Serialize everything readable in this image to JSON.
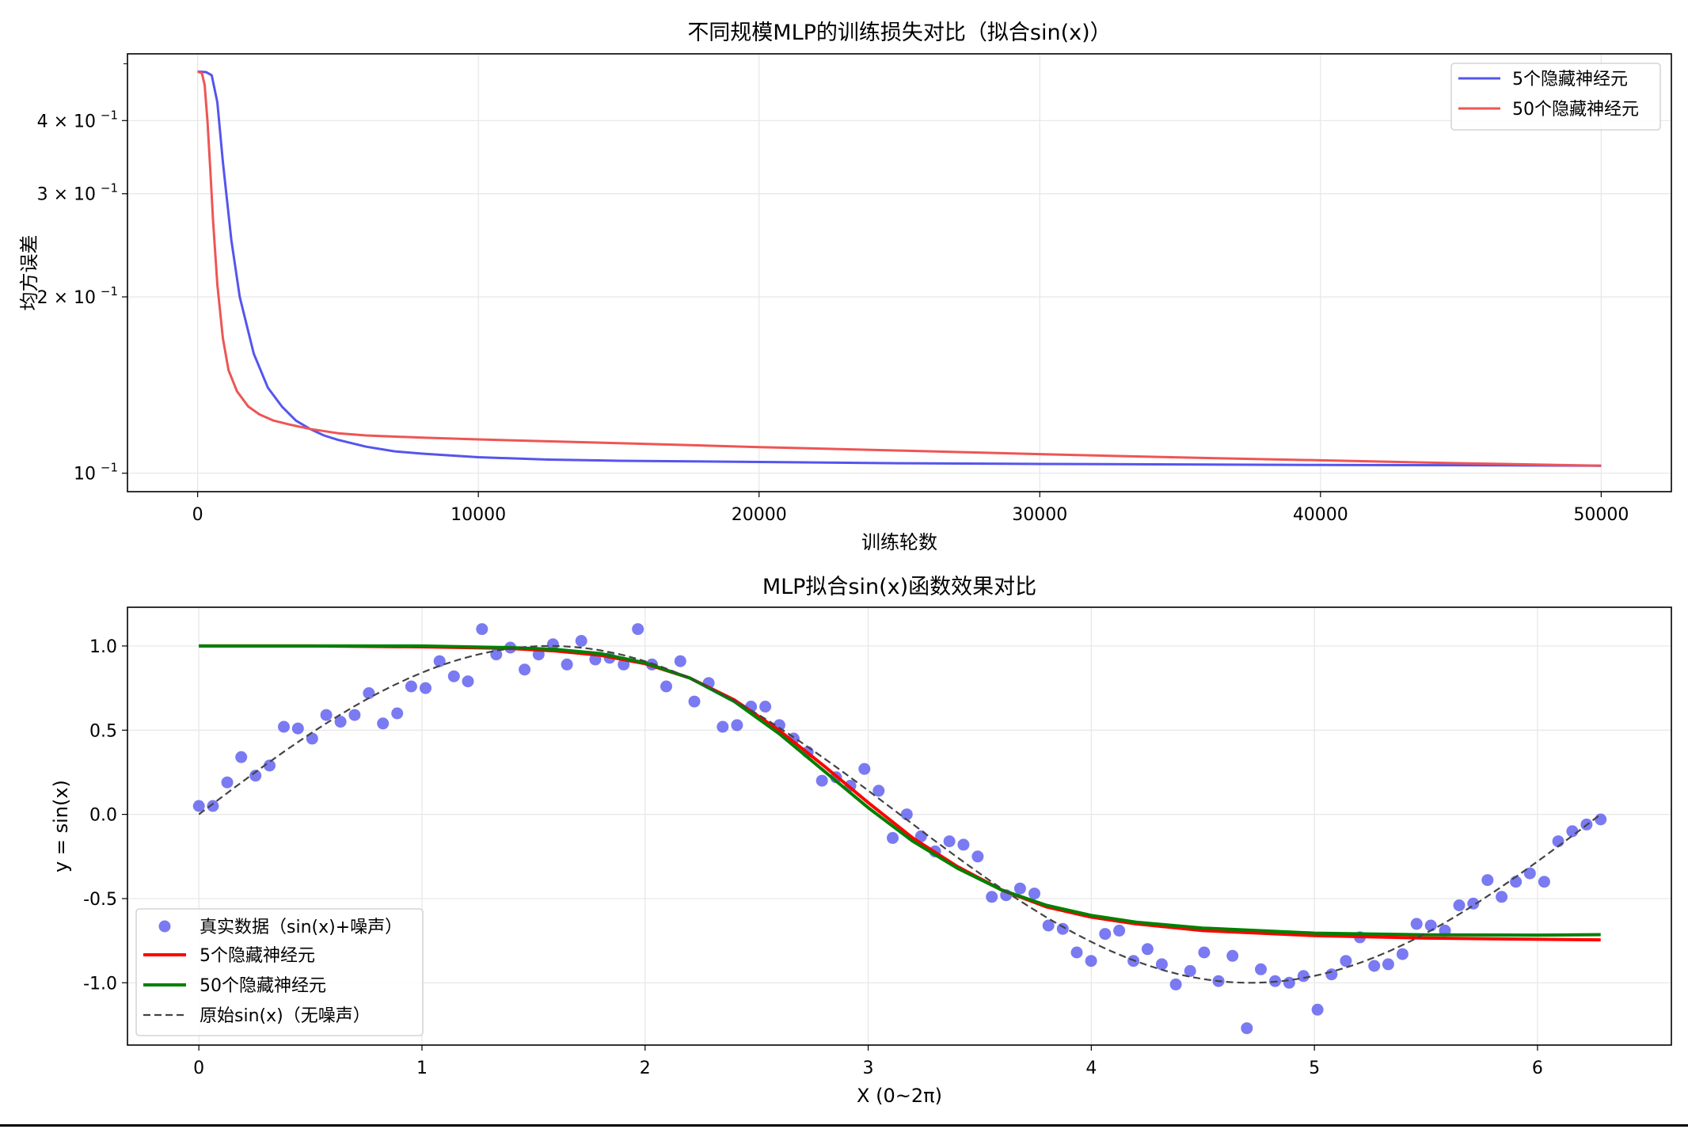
{
  "chart_data": [
    {
      "type": "line",
      "title": "不同规模MLP的训练损失对比（拟合sin(x)）",
      "xlabel": "训练轮数",
      "ylabel": "均方误差",
      "xlim": [
        -2500,
        52500
      ],
      "ylim": [
        0.093,
        0.52
      ],
      "yscale": "log",
      "xticks": [
        0,
        10000,
        20000,
        30000,
        40000,
        50000
      ],
      "xtick_labels": [
        "0",
        "10000",
        "20000",
        "30000",
        "40000",
        "50000"
      ],
      "yticks": [
        0.1,
        0.2,
        0.3,
        0.4
      ],
      "ytick_labels": [
        {
          "m": "10",
          "e": "−1"
        },
        {
          "m": "2 × 10",
          "e": "−1"
        },
        {
          "m": "3 × 10",
          "e": "−1"
        },
        {
          "m": "4 × 10",
          "e": "−1"
        }
      ],
      "grid": true,
      "legend_position": "upper right",
      "series": [
        {
          "name": "5个隐藏神经元",
          "color": "#5555ee",
          "x": [
            0,
            300,
            500,
            700,
            900,
            1200,
            1500,
            2000,
            2500,
            3000,
            3500,
            4000,
            4500,
            5000,
            6000,
            7000,
            8000,
            10000,
            12500,
            15000,
            20000,
            25000,
            30000,
            35000,
            40000,
            45000,
            50000
          ],
          "y": [
            0.485,
            0.484,
            0.478,
            0.43,
            0.34,
            0.25,
            0.2,
            0.16,
            0.14,
            0.13,
            0.123,
            0.119,
            0.116,
            0.114,
            0.111,
            0.109,
            0.108,
            0.1065,
            0.1055,
            0.105,
            0.1045,
            0.104,
            0.1037,
            0.1035,
            0.1033,
            0.1032,
            0.103
          ]
        },
        {
          "name": "50个隐藏神经元",
          "color": "#ee5555",
          "x": [
            0,
            150,
            250,
            350,
            450,
            550,
            700,
            900,
            1100,
            1400,
            1800,
            2200,
            2700,
            3300,
            4000,
            5000,
            6000,
            8000,
            10000,
            15000,
            20000,
            25000,
            30000,
            35000,
            40000,
            45000,
            50000
          ],
          "y": [
            0.485,
            0.482,
            0.46,
            0.4,
            0.33,
            0.27,
            0.21,
            0.17,
            0.15,
            0.138,
            0.13,
            0.126,
            0.123,
            0.121,
            0.119,
            0.117,
            0.116,
            0.115,
            0.1142,
            0.1125,
            0.1108,
            0.1093,
            0.1078,
            0.1064,
            0.1052,
            0.104,
            0.103
          ]
        }
      ]
    },
    {
      "type": "scatter",
      "title": "MLP拟合sin(x)函数效果对比",
      "xlabel": "X (0~2π)",
      "ylabel": "y = sin(x)",
      "xlim": [
        -0.32,
        6.6
      ],
      "ylim": [
        -1.37,
        1.23
      ],
      "xticks": [
        0,
        1,
        2,
        3,
        4,
        5,
        6
      ],
      "xtick_labels": [
        "0",
        "1",
        "2",
        "3",
        "4",
        "5",
        "6"
      ],
      "yticks": [
        1.0,
        0.5,
        0.0,
        -0.5,
        -1.0
      ],
      "ytick_labels": [
        "1.0",
        "0.5",
        "0.0",
        "-0.5",
        "-1.0"
      ],
      "grid": true,
      "legend_position": "lower left",
      "scatter": {
        "name": "真实数据（sin(x)+噪声）",
        "color": "#5555ee",
        "x": [
          0.0,
          0.063,
          0.127,
          0.19,
          0.254,
          0.317,
          0.381,
          0.444,
          0.508,
          0.571,
          0.635,
          0.698,
          0.762,
          0.825,
          0.889,
          0.952,
          1.016,
          1.079,
          1.143,
          1.206,
          1.269,
          1.333,
          1.396,
          1.46,
          1.523,
          1.587,
          1.65,
          1.714,
          1.777,
          1.841,
          1.904,
          1.968,
          2.031,
          2.095,
          2.158,
          2.221,
          2.285,
          2.348,
          2.412,
          2.475,
          2.539,
          2.602,
          2.666,
          2.729,
          2.793,
          2.856,
          2.92,
          2.983,
          3.047,
          3.11,
          3.173,
          3.237,
          3.3,
          3.364,
          3.427,
          3.491,
          3.554,
          3.618,
          3.681,
          3.745,
          3.808,
          3.872,
          3.935,
          3.999,
          4.062,
          4.125,
          4.189,
          4.252,
          4.316,
          4.379,
          4.443,
          4.506,
          4.57,
          4.633,
          4.697,
          4.76,
          4.824,
          4.887,
          4.951,
          5.014,
          5.077,
          5.141,
          5.204,
          5.268,
          5.331,
          5.395,
          5.458,
          5.522,
          5.585,
          5.649,
          5.712,
          5.776,
          5.839,
          5.903,
          5.966,
          6.03,
          6.093,
          6.156,
          6.22,
          6.283
        ],
        "y": [
          0.05,
          0.05,
          0.19,
          0.34,
          0.23,
          0.29,
          0.52,
          0.51,
          0.45,
          0.59,
          0.55,
          0.59,
          0.72,
          0.54,
          0.6,
          0.76,
          0.75,
          0.91,
          0.82,
          0.79,
          1.1,
          0.95,
          0.99,
          0.86,
          0.95,
          1.01,
          0.89,
          1.03,
          0.92,
          0.93,
          0.89,
          1.1,
          0.89,
          0.76,
          0.91,
          0.67,
          0.78,
          0.52,
          0.53,
          0.64,
          0.64,
          0.53,
          0.45,
          0.37,
          0.2,
          0.22,
          0.17,
          0.27,
          0.14,
          -0.14,
          0.0,
          -0.13,
          -0.22,
          -0.16,
          -0.18,
          -0.25,
          -0.49,
          -0.48,
          -0.44,
          -0.47,
          -0.66,
          -0.68,
          -0.82,
          -0.87,
          -0.71,
          -0.69,
          -0.87,
          -0.8,
          -0.89,
          -1.01,
          -0.93,
          -0.82,
          -0.99,
          -0.84,
          -1.27,
          -0.92,
          -0.99,
          -1.0,
          -0.96,
          -1.16,
          -0.95,
          -0.87,
          -0.73,
          -0.9,
          -0.89,
          -0.83,
          -0.65,
          -0.66,
          -0.69,
          -0.54,
          -0.53,
          -0.39,
          -0.49,
          -0.4,
          -0.35,
          -0.4,
          -0.16,
          -0.1,
          -0.06,
          -0.03
        ]
      },
      "series": [
        {
          "name": "5个隐藏神经元",
          "color": "#ff0000",
          "x": [
            0,
            0.5,
            1.0,
            1.4,
            1.6,
            1.8,
            2.0,
            2.2,
            2.4,
            2.6,
            2.8,
            3.0,
            3.2,
            3.4,
            3.6,
            3.8,
            4.0,
            4.2,
            4.5,
            5.0,
            5.5,
            6.0,
            6.283
          ],
          "y": [
            1.0,
            1.0,
            0.995,
            0.985,
            0.97,
            0.945,
            0.895,
            0.81,
            0.68,
            0.5,
            0.29,
            0.07,
            -0.14,
            -0.31,
            -0.45,
            -0.55,
            -0.61,
            -0.65,
            -0.69,
            -0.72,
            -0.735,
            -0.742,
            -0.745
          ]
        },
        {
          "name": "50个隐藏神经元",
          "color": "#008000",
          "x": [
            0,
            0.5,
            1.0,
            1.4,
            1.6,
            1.8,
            2.0,
            2.2,
            2.4,
            2.6,
            2.8,
            3.0,
            3.2,
            3.4,
            3.6,
            3.8,
            4.0,
            4.2,
            4.5,
            5.0,
            5.5,
            6.0,
            6.283
          ],
          "y": [
            1.0,
            1.0,
            1.0,
            0.99,
            0.98,
            0.955,
            0.9,
            0.81,
            0.67,
            0.48,
            0.26,
            0.04,
            -0.16,
            -0.32,
            -0.45,
            -0.54,
            -0.6,
            -0.64,
            -0.675,
            -0.705,
            -0.715,
            -0.717,
            -0.714
          ]
        }
      ],
      "reference": {
        "name": "原始sin(x)（无噪声）",
        "color": "#444444",
        "function": "sin",
        "x_range": [
          0,
          6.283
        ]
      }
    }
  ]
}
